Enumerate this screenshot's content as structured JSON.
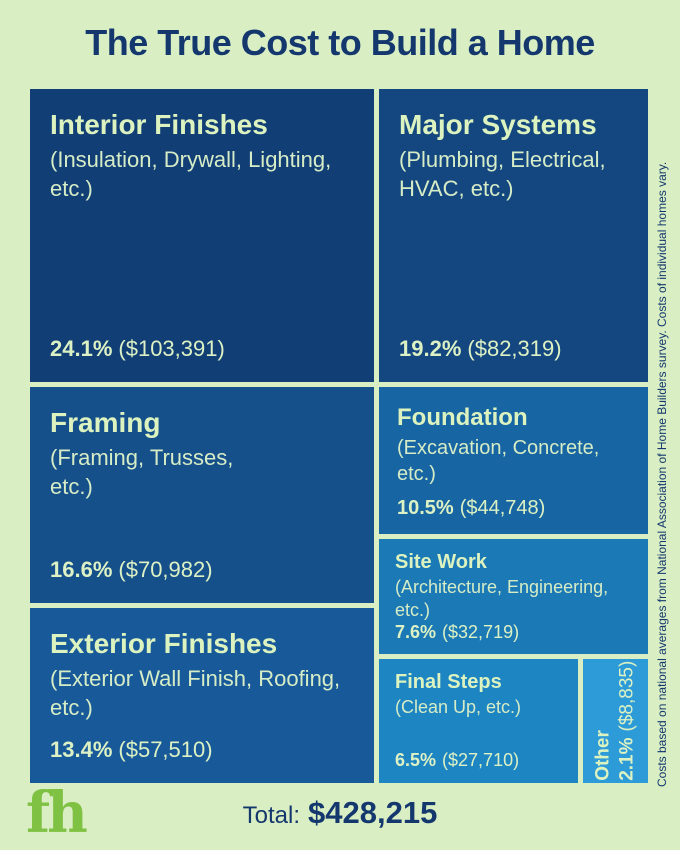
{
  "title": "The True Cost to Build a Home",
  "chart_data": {
    "type": "treemap",
    "title": "The True Cost to Build a Home",
    "total": {
      "label": "Total:",
      "value": "$428,215",
      "value_numeric": 428215
    },
    "blocks": [
      {
        "id": "interior-finishes",
        "name": "Interior Finishes",
        "detail": "(Insulation, Drywall, Lighting, etc.)",
        "pct": "24.1%",
        "amount": "($103,391)",
        "percent": 24.1,
        "value": 103391,
        "color": "#123e76"
      },
      {
        "id": "major-systems",
        "name": "Major Systems",
        "detail": "(Plumbing, Electrical, HVAC, etc.)",
        "pct": "19.2%",
        "amount": "($82,319)",
        "percent": 19.2,
        "value": 82319,
        "color": "#144780"
      },
      {
        "id": "framing",
        "name": "Framing",
        "detail": "(Framing, Trusses, etc.)",
        "pct": "16.6%",
        "amount": "($70,982)",
        "percent": 16.6,
        "value": 70982,
        "color": "#16508b"
      },
      {
        "id": "exterior-finishes",
        "name": "Exterior Finishes",
        "detail": "(Exterior Wall Finish, Roofing, etc.)",
        "pct": "13.4%",
        "amount": "($57,510)",
        "percent": 13.4,
        "value": 57510,
        "color": "#185a99"
      },
      {
        "id": "foundation",
        "name": "Foundation",
        "detail": "(Excavation, Concrete, etc.)",
        "pct": "10.5%",
        "amount": "($44,748)",
        "percent": 10.5,
        "value": 44748,
        "color": "#1765a2"
      },
      {
        "id": "site-work",
        "name": "Site Work",
        "detail": "(Architecture, Engineering, etc.)",
        "pct": "7.6%",
        "amount": "($32,719)",
        "percent": 7.6,
        "value": 32719,
        "color": "#1b79b6"
      },
      {
        "id": "final-steps",
        "name": "Final Steps",
        "detail": "(Clean Up, etc.)",
        "pct": "6.5%",
        "amount": "($27,710)",
        "percent": 6.5,
        "value": 27710,
        "color": "#1e85c3"
      },
      {
        "id": "other",
        "name": "Other",
        "detail": "",
        "pct": "2.1%",
        "amount": "($8,835)",
        "percent": 2.1,
        "value": 8835,
        "color": "#2d9bd8"
      }
    ],
    "footnote": "Costs based on national averages from National Association of Home Builders survey. Costs of individual homes vary.",
    "legend_position": "none",
    "colors": {
      "background": "#d9eec3",
      "heading_navy": "#14386e",
      "block_text_green": "#dcf1c4"
    }
  },
  "branding": {
    "logo_text": "fh",
    "logo_color": "#7fc142"
  }
}
